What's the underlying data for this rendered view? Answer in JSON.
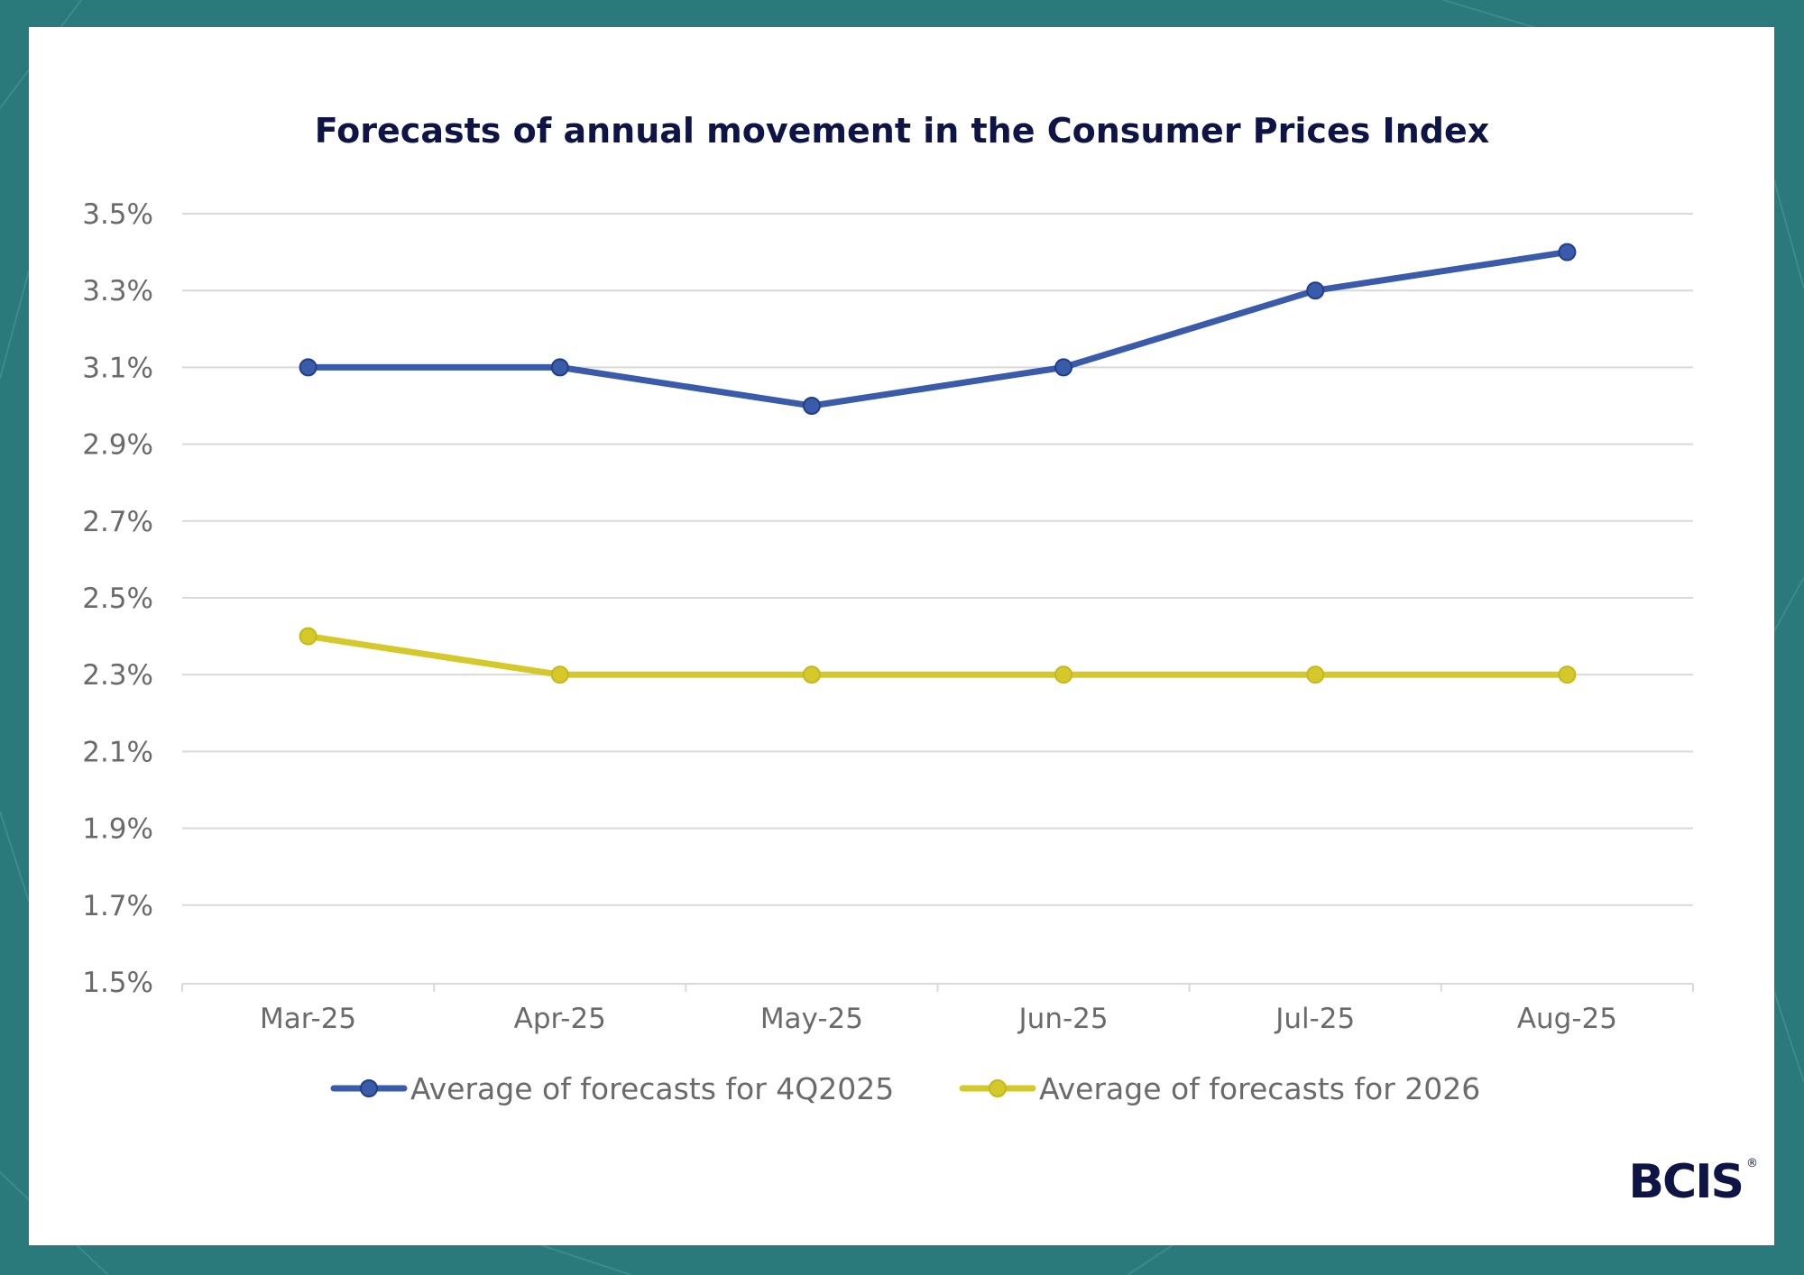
{
  "colors": {
    "frame": "#2a7a7c",
    "card": "#ffffff",
    "title": "#0e1445",
    "grid": "#d9d9d9",
    "tick_text": "#6a6a6a"
  },
  "brand": {
    "logo": "BCIS",
    "registered": "®"
  },
  "chart_data": {
    "type": "line",
    "title": "Forecasts of annual movement in the Consumer Prices Index",
    "xlabel": "",
    "ylabel": "",
    "categories": [
      "Mar-25",
      "Apr-25",
      "May-25",
      "Jun-25",
      "Jul-25",
      "Aug-25"
    ],
    "y_ticks": [
      "1.5%",
      "1.7%",
      "1.9%",
      "2.1%",
      "2.3%",
      "2.5%",
      "2.7%",
      "2.9%",
      "3.1%",
      "3.3%",
      "3.5%"
    ],
    "ylim": [
      1.5,
      3.5
    ],
    "grid": true,
    "legend_position": "bottom",
    "series": [
      {
        "name": "Average of forecasts for 4Q2025",
        "values": [
          3.1,
          3.1,
          3.0,
          3.1,
          3.3,
          3.4
        ],
        "color": "#3a5aaa",
        "marker_stroke": "#1f3f88"
      },
      {
        "name": "Average of forecasts for 2026",
        "values": [
          2.4,
          2.3,
          2.3,
          2.3,
          2.3,
          2.3
        ],
        "color": "#d5c82a",
        "marker_stroke": "#c5b81a"
      }
    ]
  }
}
